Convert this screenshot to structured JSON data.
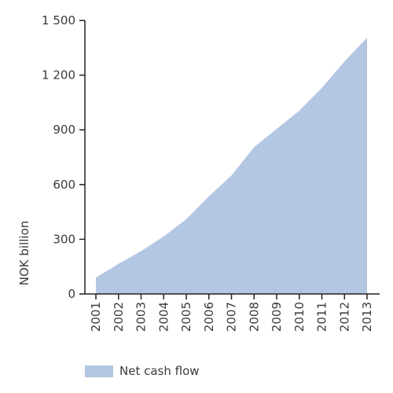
{
  "chart_data": {
    "type": "area",
    "ylabel": "NOK billion",
    "x": [
      "2001",
      "2002",
      "2003",
      "2004",
      "2005",
      "2006",
      "2007",
      "2008",
      "2009",
      "2010",
      "2011",
      "2012",
      "2013"
    ],
    "series": [
      {
        "name": "Net cash flow",
        "color": "#b3c6e2",
        "values": [
          90,
          165,
          235,
          315,
          410,
          535,
          650,
          805,
          905,
          1005,
          1130,
          1275,
          1405
        ]
      }
    ],
    "ylim": [
      0,
      1500
    ],
    "yticks": [
      {
        "value": 0,
        "label": "0"
      },
      {
        "value": 300,
        "label": "300"
      },
      {
        "value": 600,
        "label": "600"
      },
      {
        "value": 900,
        "label": "900"
      },
      {
        "value": 1200,
        "label": "1 200"
      },
      {
        "value": 1500,
        "label": "1 500"
      }
    ],
    "grid": false,
    "legend_position": "bottom-left"
  }
}
